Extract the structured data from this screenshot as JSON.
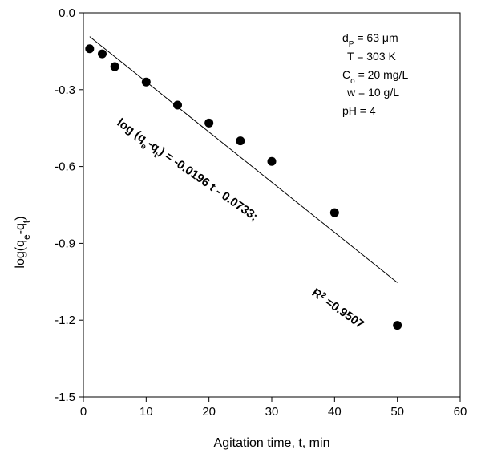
{
  "chart_data": {
    "type": "scatter",
    "xlabel": "Agitation time, t, min",
    "ylabel": {
      "prefix": "log(q",
      "sub1": "e",
      "mid": "-q",
      "sub2": "t",
      "suffix": ")"
    },
    "xlim": [
      0,
      60
    ],
    "ylim": [
      -1.5,
      0.0
    ],
    "x_ticks": [
      0,
      10,
      20,
      30,
      40,
      50,
      60
    ],
    "y_ticks": [
      {
        "value": 0.0,
        "label": "0.0"
      },
      {
        "value": -0.3,
        "label": "-0.3"
      },
      {
        "value": -0.6,
        "label": "-0.6"
      },
      {
        "value": -0.9,
        "label": "-0.9"
      },
      {
        "value": -1.2,
        "label": "-1.2"
      },
      {
        "value": -1.5,
        "label": "-1.5"
      }
    ],
    "grid": false,
    "points": [
      {
        "x": 1,
        "y": -0.14
      },
      {
        "x": 3,
        "y": -0.16
      },
      {
        "x": 5,
        "y": -0.21
      },
      {
        "x": 10,
        "y": -0.27
      },
      {
        "x": 15,
        "y": -0.36
      },
      {
        "x": 20,
        "y": -0.43
      },
      {
        "x": 25,
        "y": -0.5
      },
      {
        "x": 30,
        "y": -0.58
      },
      {
        "x": 40,
        "y": -0.78
      },
      {
        "x": 50,
        "y": -1.22
      }
    ],
    "fit_line": {
      "slope": -0.0196,
      "intercept": -0.0733,
      "x_start": 1,
      "x_end": 50
    },
    "conditions": [
      {
        "pre": "d",
        "sub": "P",
        "post": " = 63 μm"
      },
      {
        "pre": "T = 303 K",
        "sub": "",
        "post": ""
      },
      {
        "pre": "C",
        "sub": "o",
        "post": " = 20 mg/L"
      },
      {
        "pre": "w = 10 g/L",
        "sub": "",
        "post": ""
      },
      {
        "pre": "pH = 4",
        "sub": "",
        "post": ""
      }
    ],
    "equation": {
      "prefix": "log (q",
      "sub1": "e",
      "mid": "-q",
      "sub2": "t",
      "suffix": ") = -0.0196 t - 0.0733;"
    },
    "r_squared": {
      "prefix": "R",
      "sup": "2",
      "suffix": " =0.9507"
    },
    "colors": {
      "marker": "#000000",
      "line": "#000000",
      "axis": "#000000"
    }
  }
}
